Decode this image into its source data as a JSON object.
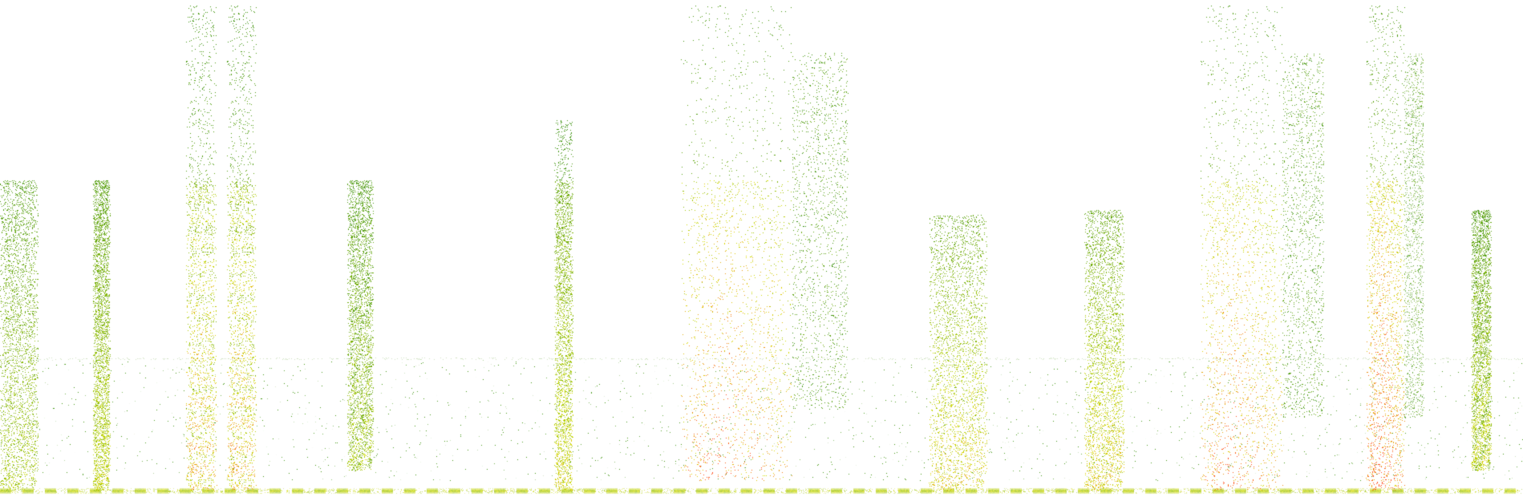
{
  "spectrogram": {
    "palette": {
      "low": "#2e8b0f",
      "mid": "#d8e000",
      "high": "#ff4a1a",
      "background": "#ffffff"
    },
    "events": [
      {
        "id": "e1",
        "t_start": 0.0,
        "t_end": 0.025,
        "f_low": 0.02,
        "f_high": 0.64,
        "intensity": 0.45,
        "kind": "noise"
      },
      {
        "id": "e2",
        "t_start": 0.061,
        "t_end": 0.072,
        "f_low": 0.02,
        "f_high": 0.64,
        "intensity": 0.55,
        "kind": "thin"
      },
      {
        "id": "e3",
        "t_start": 0.122,
        "t_end": 0.142,
        "f_low": 0.02,
        "f_high": 0.99,
        "intensity": 0.75,
        "kind": "harmonic"
      },
      {
        "id": "e4",
        "t_start": 0.149,
        "t_end": 0.168,
        "f_low": 0.02,
        "f_high": 0.99,
        "intensity": 0.75,
        "kind": "harmonic"
      },
      {
        "id": "e5",
        "t_start": 0.228,
        "t_end": 0.245,
        "f_low": 0.06,
        "f_high": 0.64,
        "intensity": 0.5,
        "kind": "chirp"
      },
      {
        "id": "e6",
        "t_start": 0.364,
        "t_end": 0.376,
        "f_low": 0.02,
        "f_high": 0.76,
        "intensity": 0.6,
        "kind": "thin"
      },
      {
        "id": "e7",
        "t_start": 0.447,
        "t_end": 0.52,
        "f_low": 0.04,
        "f_high": 0.99,
        "intensity": 0.85,
        "kind": "broadband"
      },
      {
        "id": "e8",
        "t_start": 0.61,
        "t_end": 0.648,
        "f_low": 0.02,
        "f_high": 0.57,
        "intensity": 0.7,
        "kind": "block"
      },
      {
        "id": "e9",
        "t_start": 0.712,
        "t_end": 0.738,
        "f_low": 0.02,
        "f_high": 0.58,
        "intensity": 0.7,
        "kind": "block"
      },
      {
        "id": "e10",
        "t_start": 0.788,
        "t_end": 0.842,
        "f_low": 0.02,
        "f_high": 0.99,
        "intensity": 0.85,
        "kind": "broadband"
      },
      {
        "id": "e11",
        "t_start": 0.897,
        "t_end": 0.922,
        "f_low": 0.02,
        "f_high": 0.99,
        "intensity": 0.95,
        "kind": "broadband"
      },
      {
        "id": "e12",
        "t_start": 0.966,
        "t_end": 0.979,
        "f_low": 0.06,
        "f_high": 0.58,
        "intensity": 0.6,
        "kind": "chirp"
      }
    ],
    "baseline_band": {
      "f": 0.02,
      "intensity": 0.55
    },
    "noise_floor_band": {
      "f_low": 0.04,
      "f_high": 0.28,
      "intensity": 0.12
    }
  }
}
